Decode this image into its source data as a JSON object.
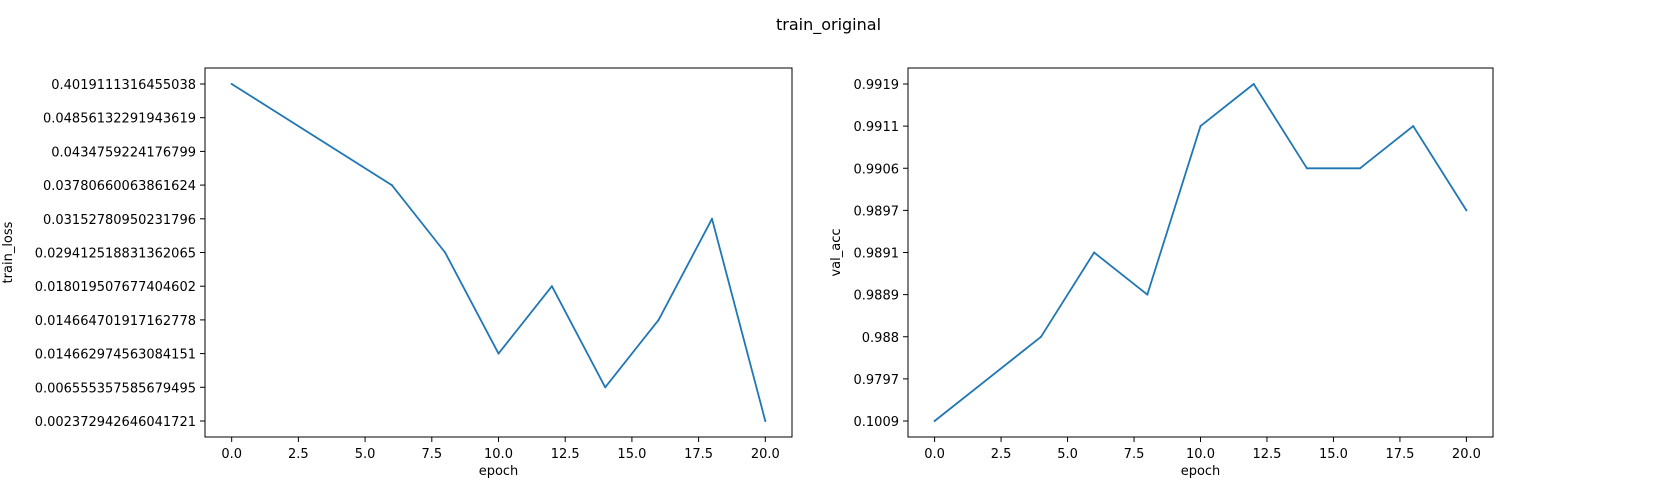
{
  "figure": {
    "title": "train_original"
  },
  "chart_data": [
    {
      "type": "line",
      "xlabel": "epoch",
      "ylabel": "train_loss",
      "xlim": [
        -1,
        21
      ],
      "xticks": [
        0.0,
        2.5,
        5.0,
        7.5,
        10.0,
        12.5,
        15.0,
        17.5,
        20.0
      ],
      "xtick_labels": [
        "0.0",
        "2.5",
        "5.0",
        "7.5",
        "10.0",
        "12.5",
        "15.0",
        "17.5",
        "20.0"
      ],
      "y_scale": "categorical",
      "ytick_labels": [
        "0.002372942646041721",
        "0.006555357585679495",
        "0.014662974563084151",
        "0.014664701917162778",
        "0.018019507677404602",
        "0.029412518831362065",
        "0.03152780950231796",
        "0.03780660063861624",
        "0.0434759224176799",
        "0.04856132291943619",
        "0.4019111316455038"
      ],
      "series": [
        {
          "color": "#1f77b4",
          "x": [
            0,
            6,
            8,
            10,
            12,
            14,
            16,
            18,
            20
          ],
          "y": [
            "0.4019111316455038",
            "0.03780660063861624",
            "0.029412518831362065",
            "0.014662974563084151",
            "0.018019507677404602",
            "0.006555357585679495",
            "0.014664701917162778",
            "0.03152780950231796",
            "0.002372942646041721"
          ]
        }
      ],
      "grid": false
    },
    {
      "type": "line",
      "xlabel": "epoch",
      "ylabel": "val_acc",
      "xlim": [
        -1,
        21
      ],
      "xticks": [
        0.0,
        2.5,
        5.0,
        7.5,
        10.0,
        12.5,
        15.0,
        17.5,
        20.0
      ],
      "xtick_labels": [
        "0.0",
        "2.5",
        "5.0",
        "7.5",
        "10.0",
        "12.5",
        "15.0",
        "17.5",
        "20.0"
      ],
      "y_scale": "categorical",
      "ytick_labels": [
        "0.1009",
        "0.9797",
        "0.988",
        "0.9889",
        "0.9891",
        "0.9897",
        "0.9906",
        "0.9911",
        "0.9919"
      ],
      "series": [
        {
          "color": "#1f77b4",
          "x": [
            0,
            4,
            6,
            8,
            10,
            12,
            14,
            16,
            18,
            20
          ],
          "y": [
            "0.1009",
            "0.988",
            "0.9891",
            "0.9889",
            "0.9911",
            "0.9919",
            "0.9906",
            "0.9906",
            "0.9911",
            "0.9897"
          ]
        }
      ],
      "grid": false
    }
  ]
}
